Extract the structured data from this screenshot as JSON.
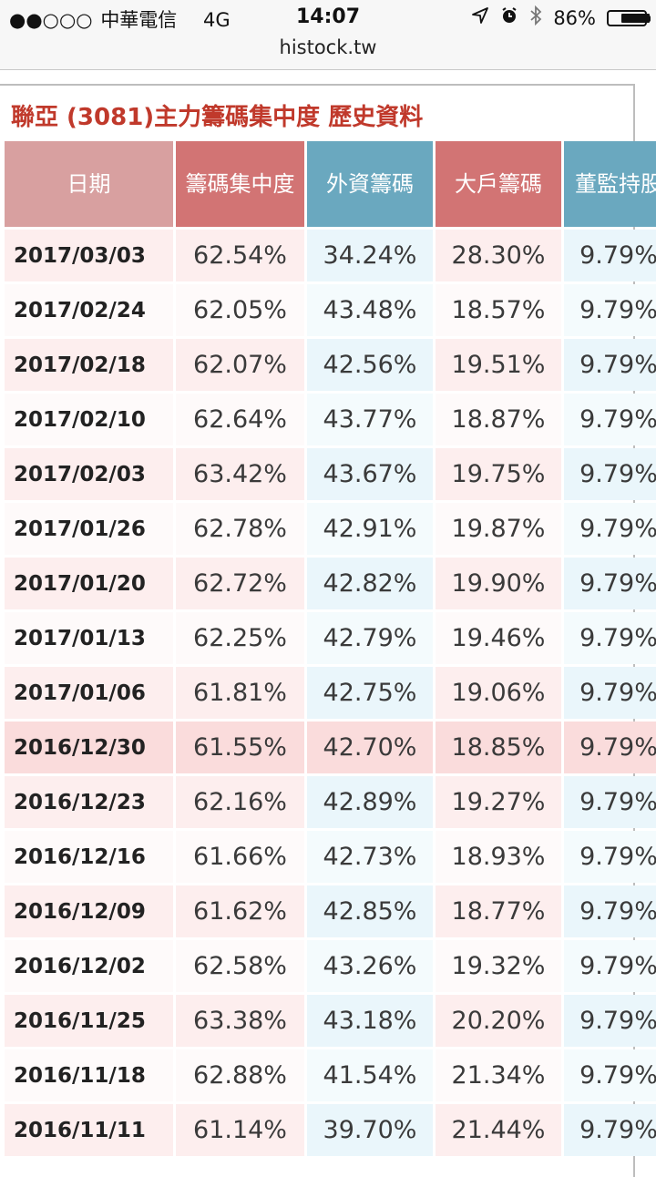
{
  "status_bar": {
    "signal": "●●○○○",
    "carrier": "中華電信",
    "network": "4G",
    "time": "14:07",
    "location_icon": "location-arrow-icon",
    "alarm_icon": "alarm-icon",
    "bluetooth_icon": "bluetooth-icon",
    "battery_percent": "86%",
    "battery_level": 0.86
  },
  "url_bar": {
    "domain": "histock.tw"
  },
  "page": {
    "title": "聯亞 (3081)主力籌碼集中度 歷史資料"
  },
  "colors": {
    "title": "#c0392b",
    "header_date": "#d8a0a0",
    "header_red": "#d27474",
    "header_blue": "#6aa8bf",
    "row_highlight": "#fadcdc"
  },
  "table": {
    "headers": [
      "日期",
      "籌碼集中度",
      "外資籌碼",
      "大戶籌碼",
      "董監持股"
    ],
    "rows": [
      [
        "2017/03/03",
        "62.54%",
        "34.24%",
        "28.30%",
        "9.79%"
      ],
      [
        "2017/02/24",
        "62.05%",
        "43.48%",
        "18.57%",
        "9.79%"
      ],
      [
        "2017/02/18",
        "62.07%",
        "42.56%",
        "19.51%",
        "9.79%"
      ],
      [
        "2017/02/10",
        "62.64%",
        "43.77%",
        "18.87%",
        "9.79%"
      ],
      [
        "2017/02/03",
        "63.42%",
        "43.67%",
        "19.75%",
        "9.79%"
      ],
      [
        "2017/01/26",
        "62.78%",
        "42.91%",
        "19.87%",
        "9.79%"
      ],
      [
        "2017/01/20",
        "62.72%",
        "42.82%",
        "19.90%",
        "9.79%"
      ],
      [
        "2017/01/13",
        "62.25%",
        "42.79%",
        "19.46%",
        "9.79%"
      ],
      [
        "2017/01/06",
        "61.81%",
        "42.75%",
        "19.06%",
        "9.79%"
      ],
      [
        "2016/12/30",
        "61.55%",
        "42.70%",
        "18.85%",
        "9.79%"
      ],
      [
        "2016/12/23",
        "62.16%",
        "42.89%",
        "19.27%",
        "9.79%"
      ],
      [
        "2016/12/16",
        "61.66%",
        "42.73%",
        "18.93%",
        "9.79%"
      ],
      [
        "2016/12/09",
        "61.62%",
        "42.85%",
        "18.77%",
        "9.79%"
      ],
      [
        "2016/12/02",
        "62.58%",
        "43.26%",
        "19.32%",
        "9.79%"
      ],
      [
        "2016/11/25",
        "63.38%",
        "43.18%",
        "20.20%",
        "9.79%"
      ],
      [
        "2016/11/18",
        "62.88%",
        "41.54%",
        "21.34%",
        "9.79%"
      ],
      [
        "2016/11/11",
        "61.14%",
        "39.70%",
        "21.44%",
        "9.79%"
      ]
    ],
    "highlighted_row": 9
  }
}
